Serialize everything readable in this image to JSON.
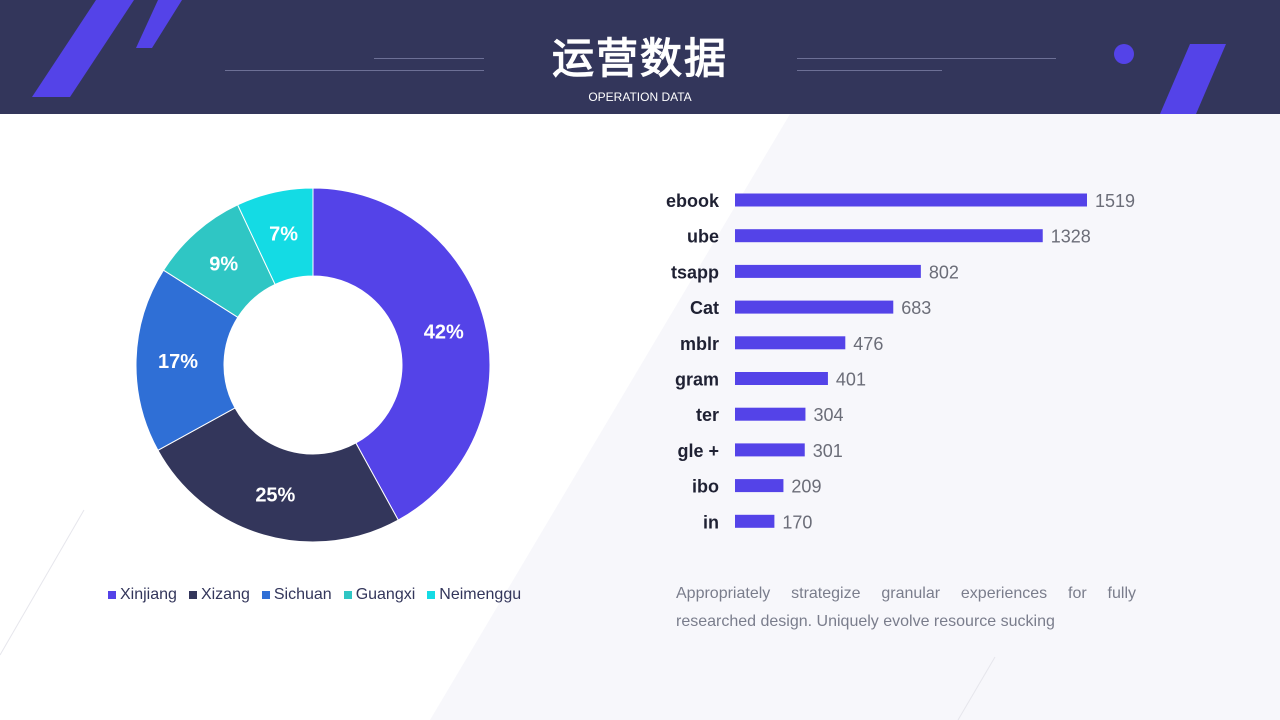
{
  "header": {
    "title": "运营数据",
    "subtitle": "OPERATION DATA"
  },
  "colors": {
    "header_bg": "#33365b",
    "accent": "#5443e8",
    "bar": "#5443e8"
  },
  "chart_data": [
    {
      "type": "pie",
      "variant": "donut",
      "categories": [
        "Xinjiang",
        "Xizang",
        "Sichuan",
        "Guangxi",
        "Neimenggu"
      ],
      "values": [
        42,
        25,
        17,
        9,
        7
      ],
      "labels": [
        "42%",
        "25%",
        "17%",
        "9%",
        "7%"
      ],
      "colors": [
        "#5443e8",
        "#33365b",
        "#2f6fd6",
        "#2fc6c4",
        "#14dbe4"
      ],
      "legend": "bottom"
    },
    {
      "type": "bar",
      "orientation": "horizontal",
      "categories": [
        "ebook",
        "ube",
        "tsapp",
        "Cat",
        "mblr",
        "gram",
        "ter",
        "gle +",
        "ibo",
        "in"
      ],
      "values": [
        1519,
        1328,
        802,
        683,
        476,
        401,
        304,
        301,
        209,
        170
      ],
      "xlim": [
        0,
        1519
      ],
      "grid": false
    }
  ],
  "description": "Appropriately strategize granular experiences for fully researched design. Uniquely evolve resource sucking"
}
